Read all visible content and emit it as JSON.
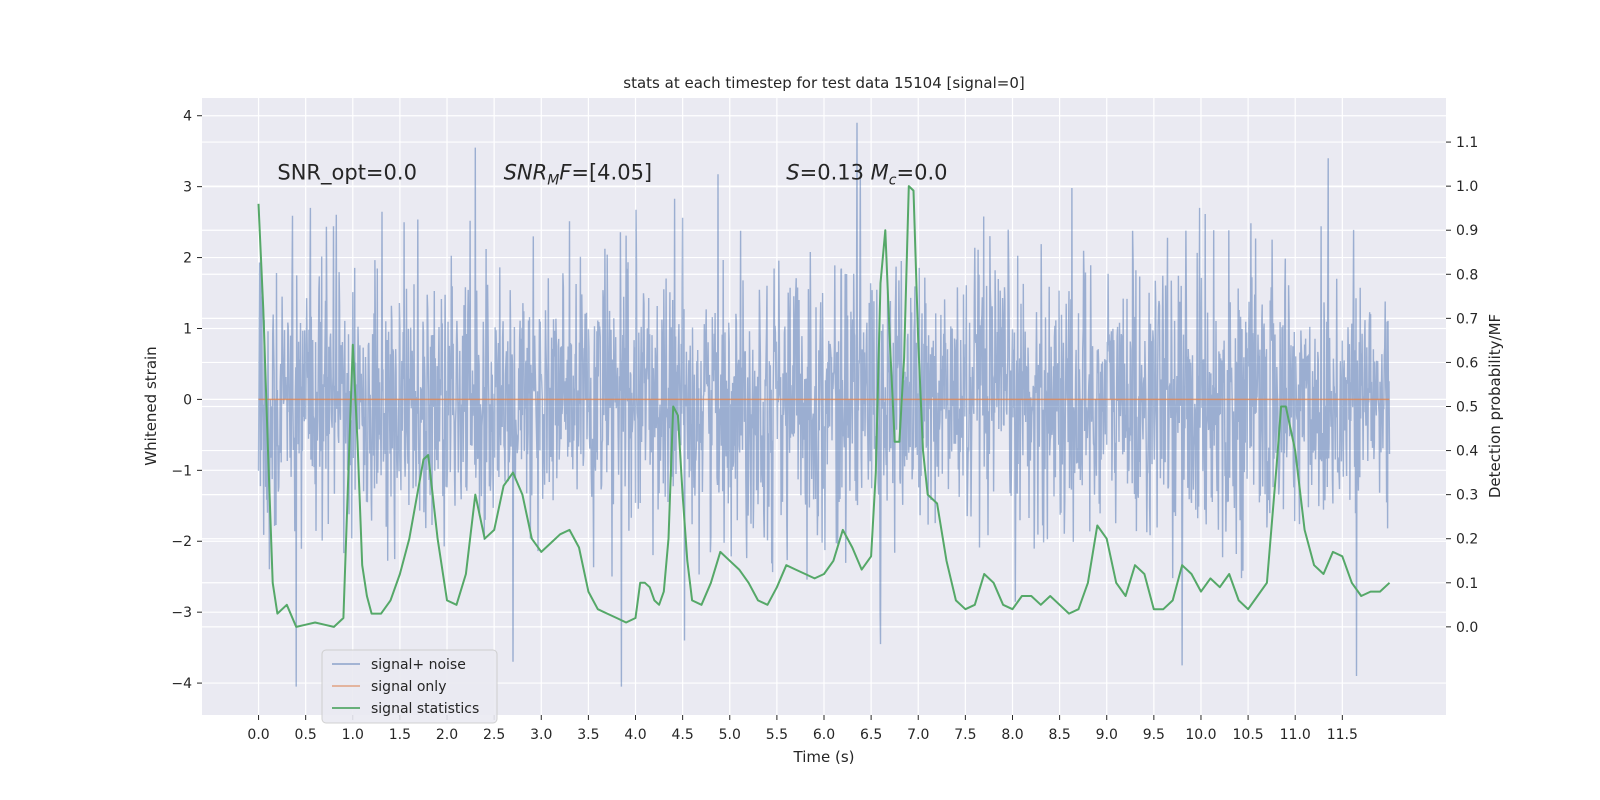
{
  "chart_data": {
    "type": "line",
    "title": "stats at each timestep for test data 15104 [signal=0]",
    "xlabel": "Time (s)",
    "ylabel": "Whitened strain",
    "ylabel_right": "Detection probability/MF",
    "xlim": [
      -0.6,
      12.6
    ],
    "ylim": [
      -4.45,
      4.25
    ],
    "ylim_right": [
      -0.2,
      1.2
    ],
    "x_ticks": [
      "0.0",
      "0.5",
      "1.0",
      "1.5",
      "2.0",
      "2.5",
      "3.0",
      "3.5",
      "4.0",
      "4.5",
      "5.0",
      "5.5",
      "6.0",
      "6.5",
      "7.0",
      "7.5",
      "8.0",
      "8.5",
      "9.0",
      "9.5",
      "10.0",
      "10.5",
      "11.0",
      "11.5"
    ],
    "y_ticks_left": [
      "-4",
      "-3",
      "-2",
      "-1",
      "0",
      "1",
      "2",
      "3",
      "4"
    ],
    "y_ticks_right": [
      "0.0",
      "0.1",
      "0.2",
      "0.3",
      "0.4",
      "0.5",
      "0.6",
      "0.7",
      "0.8",
      "0.9",
      "1.0",
      "1.1"
    ],
    "grid": true,
    "legend_position": "lower-left",
    "background_color": "#eaeaf2",
    "annotations": [
      {
        "text": "SNR_opt=0.0",
        "x": 0.2,
        "y": 3.1
      },
      {
        "text_html": "<tspan font-style=\"italic\">SNR</tspan><tspan font-style=\"italic\" font-size=\"14\" dy=\"5\">M</tspan><tspan font-style=\"italic\" dy=\"-5\">F</tspan><tspan>=[4.05]</tspan>",
        "plain": "SNR_MF=[4.05]",
        "x": 2.6,
        "y": 3.1
      },
      {
        "text_html": "<tspan font-style=\"italic\">S</tspan><tspan>=0.13   </tspan><tspan font-style=\"italic\">M</tspan><tspan font-style=\"italic\" font-size=\"14\" dy=\"5\">c</tspan><tspan dy=\"-5\">=0.0</tspan>",
        "plain": "S=0.13   M_c=0.0",
        "x": 5.6,
        "y": 3.1
      }
    ],
    "series": [
      {
        "name": "signal+ noise",
        "axis": "left",
        "color": "#4c72b0",
        "opacity": 0.5,
        "kind": "noise",
        "x_range": [
          0.0,
          12.0
        ],
        "typical_envelope": [
          -1.8,
          1.8
        ],
        "peaks": [
          {
            "x": 6.35,
            "y": 3.9
          },
          {
            "x": 2.3,
            "y": 3.55
          },
          {
            "x": 0.55,
            "y": 2.7
          },
          {
            "x": 3.85,
            "y": -4.05
          },
          {
            "x": 0.4,
            "y": -4.05
          },
          {
            "x": 11.65,
            "y": -3.9
          },
          {
            "x": 2.7,
            "y": -3.7
          },
          {
            "x": 9.8,
            "y": -3.75
          },
          {
            "x": 11.35,
            "y": 3.4
          },
          {
            "x": 6.6,
            "y": -3.45
          }
        ]
      },
      {
        "name": "signal only",
        "axis": "left",
        "color": "#dd8452",
        "x": [
          0.0,
          12.0
        ],
        "y": [
          0.0,
          0.0
        ]
      },
      {
        "name": "signal statistics",
        "axis": "right",
        "color": "#55a868",
        "x": [
          0.0,
          0.05,
          0.1,
          0.15,
          0.2,
          0.3,
          0.4,
          0.5,
          0.6,
          0.7,
          0.8,
          0.9,
          1.0,
          1.05,
          1.1,
          1.15,
          1.2,
          1.3,
          1.4,
          1.5,
          1.6,
          1.7,
          1.75,
          1.8,
          1.9,
          2.0,
          2.1,
          2.2,
          2.3,
          2.4,
          2.5,
          2.6,
          2.7,
          2.8,
          2.9,
          3.0,
          3.1,
          3.2,
          3.3,
          3.4,
          3.5,
          3.6,
          3.7,
          3.8,
          3.9,
          4.0,
          4.05,
          4.1,
          4.15,
          4.2,
          4.25,
          4.3,
          4.35,
          4.4,
          4.45,
          4.5,
          4.55,
          4.6,
          4.7,
          4.8,
          4.9,
          5.0,
          5.1,
          5.2,
          5.3,
          5.4,
          5.5,
          5.6,
          5.7,
          5.8,
          5.9,
          6.0,
          6.1,
          6.2,
          6.3,
          6.4,
          6.5,
          6.55,
          6.6,
          6.65,
          6.7,
          6.75,
          6.8,
          6.85,
          6.9,
          6.95,
          7.0,
          7.05,
          7.1,
          7.15,
          7.2,
          7.3,
          7.4,
          7.5,
          7.6,
          7.7,
          7.8,
          7.9,
          8.0,
          8.1,
          8.2,
          8.3,
          8.4,
          8.5,
          8.6,
          8.7,
          8.8,
          8.9,
          9.0,
          9.1,
          9.2,
          9.3,
          9.4,
          9.5,
          9.6,
          9.7,
          9.8,
          9.9,
          10.0,
          10.1,
          10.2,
          10.3,
          10.4,
          10.5,
          10.6,
          10.7,
          10.8,
          10.85,
          10.9,
          11.0,
          11.1,
          11.2,
          11.3,
          11.4,
          11.5,
          11.6,
          11.7,
          11.8,
          11.9,
          12.0
        ],
        "y": [
          0.96,
          0.72,
          0.4,
          0.1,
          0.03,
          0.05,
          0.0,
          0.005,
          0.01,
          0.005,
          0.0,
          0.02,
          0.64,
          0.42,
          0.14,
          0.07,
          0.03,
          0.03,
          0.06,
          0.12,
          0.2,
          0.32,
          0.38,
          0.39,
          0.2,
          0.06,
          0.05,
          0.12,
          0.3,
          0.2,
          0.22,
          0.32,
          0.35,
          0.3,
          0.2,
          0.17,
          0.19,
          0.21,
          0.22,
          0.18,
          0.08,
          0.04,
          0.03,
          0.02,
          0.01,
          0.02,
          0.1,
          0.1,
          0.09,
          0.06,
          0.05,
          0.08,
          0.2,
          0.5,
          0.48,
          0.3,
          0.15,
          0.06,
          0.05,
          0.1,
          0.17,
          0.15,
          0.13,
          0.1,
          0.06,
          0.05,
          0.09,
          0.14,
          0.13,
          0.12,
          0.11,
          0.12,
          0.15,
          0.22,
          0.18,
          0.13,
          0.16,
          0.35,
          0.78,
          0.9,
          0.64,
          0.42,
          0.42,
          0.61,
          1.0,
          0.99,
          0.65,
          0.4,
          0.3,
          0.29,
          0.28,
          0.15,
          0.06,
          0.04,
          0.05,
          0.12,
          0.1,
          0.05,
          0.04,
          0.07,
          0.07,
          0.05,
          0.07,
          0.05,
          0.03,
          0.04,
          0.1,
          0.23,
          0.2,
          0.1,
          0.07,
          0.14,
          0.12,
          0.04,
          0.04,
          0.06,
          0.14,
          0.12,
          0.08,
          0.11,
          0.09,
          0.12,
          0.06,
          0.04,
          0.07,
          0.1,
          0.36,
          0.5,
          0.5,
          0.4,
          0.22,
          0.14,
          0.12,
          0.17,
          0.16,
          0.1,
          0.07,
          0.08,
          0.08,
          0.1
        ]
      }
    ]
  }
}
